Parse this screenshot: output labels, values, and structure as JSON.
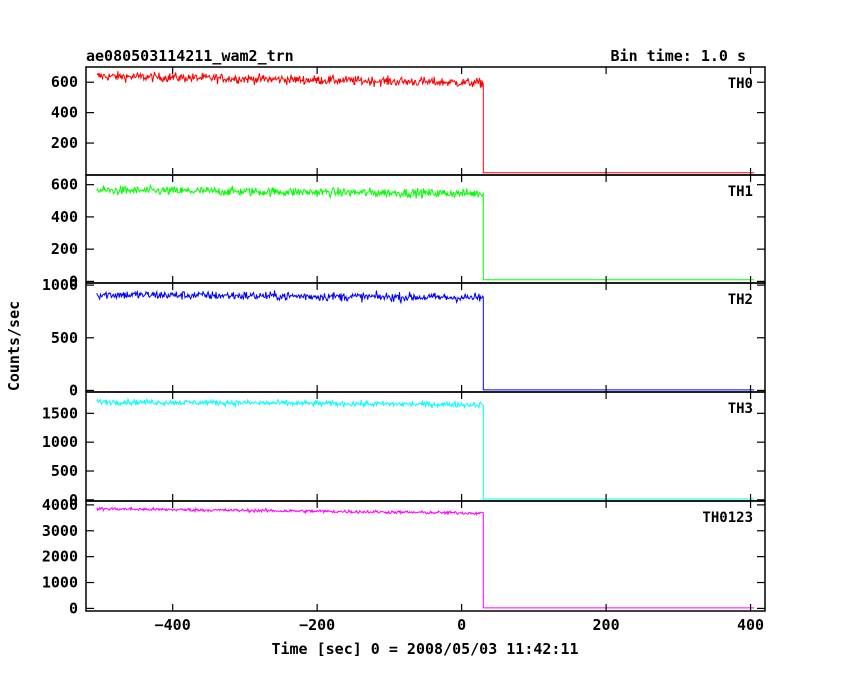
{
  "chart_data": {
    "type": "line",
    "title": "ae080503114211_wam2_trn",
    "bin_time_label": "Bin time: 1.0 s",
    "xlabel": "Time [sec] 0 = 2008/05/03 11:42:11",
    "ylabel": "Counts/sec",
    "xlim": [
      -520,
      420
    ],
    "x_ticks": [
      -400,
      -200,
      0,
      200,
      400
    ],
    "x_tick_labels": [
      "−400",
      "−200",
      "0",
      "200",
      "400"
    ],
    "grid": false,
    "drop_time": 30,
    "data_start": -505,
    "data_end": 405,
    "panels": [
      {
        "name": "TH0",
        "color": "#ff0000",
        "ylim": [
          -10,
          700
        ],
        "y_ticks": [
          200,
          400,
          600
        ],
        "y_tick_labels": [
          "200",
          "400",
          "600"
        ],
        "pre_start_level": 640,
        "pre_end_level": 595,
        "noise": 22,
        "post_level": 5
      },
      {
        "name": "TH1",
        "color": "#00ff00",
        "ylim": [
          -10,
          660
        ],
        "y_ticks": [
          0,
          200,
          400,
          600
        ],
        "y_tick_labels": [
          "0",
          "200",
          "400",
          "600"
        ],
        "pre_start_level": 565,
        "pre_end_level": 545,
        "noise": 20,
        "post_level": 10
      },
      {
        "name": "TH2",
        "color": "#0000ff",
        "ylim": [
          -15,
          1020
        ],
        "y_ticks": [
          0,
          500,
          1000
        ],
        "y_tick_labels": [
          "0",
          "500",
          "1000"
        ],
        "pre_start_level": 910,
        "pre_end_level": 880,
        "noise": 30,
        "post_level": 5
      },
      {
        "name": "TH3",
        "color": "#00ffff",
        "ylim": [
          -20,
          1870
        ],
        "y_ticks": [
          0,
          500,
          1000,
          1500
        ],
        "y_tick_labels": [
          "0",
          "500",
          "1000",
          "1500"
        ],
        "pre_start_level": 1700,
        "pre_end_level": 1650,
        "noise": 35,
        "post_level": 15
      },
      {
        "name": "TH0123",
        "color": "#ff00ff",
        "ylim": [
          -100,
          4150
        ],
        "y_ticks": [
          0,
          1000,
          2000,
          3000,
          4000
        ],
        "y_tick_labels": [
          "0",
          "1000",
          "2000",
          "3000",
          "4000"
        ],
        "pre_start_level": 3850,
        "pre_end_level": 3680,
        "noise": 45,
        "post_level": 20
      }
    ]
  }
}
